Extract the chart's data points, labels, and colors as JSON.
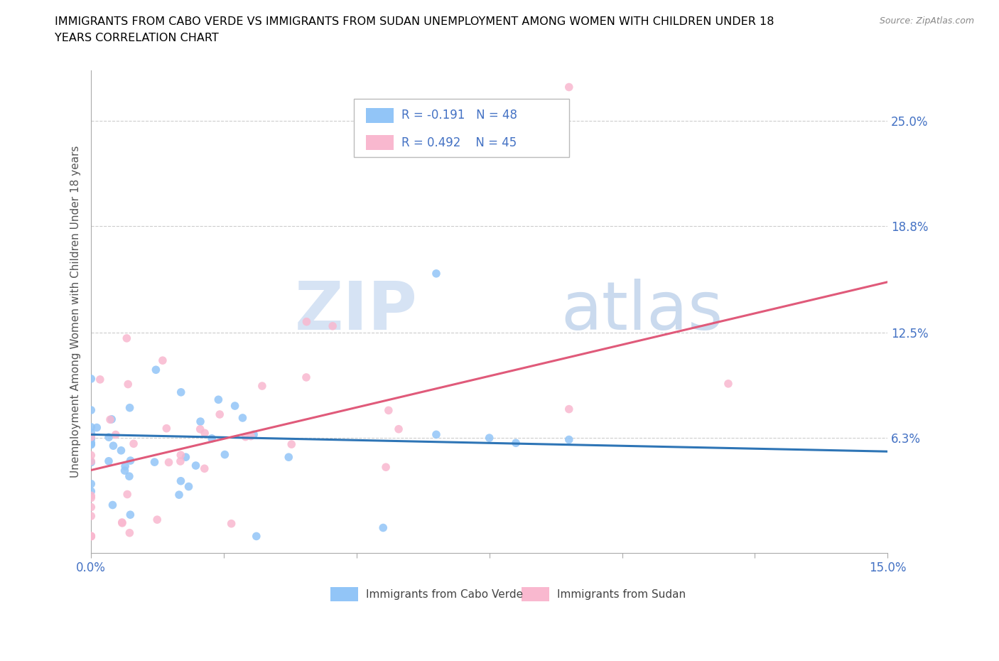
{
  "title_line1": "IMMIGRANTS FROM CABO VERDE VS IMMIGRANTS FROM SUDAN UNEMPLOYMENT AMONG WOMEN WITH CHILDREN UNDER 18",
  "title_line2": "YEARS CORRELATION CHART",
  "source": "Source: ZipAtlas.com",
  "ylabel": "Unemployment Among Women with Children Under 18 years",
  "xmin": 0.0,
  "xmax": 0.15,
  "ymin": -0.005,
  "ymax": 0.28,
  "ytick_vals": [
    0.063,
    0.125,
    0.188,
    0.25
  ],
  "ytick_labels": [
    "6.3%",
    "12.5%",
    "18.8%",
    "25.0%"
  ],
  "xtick_vals": [
    0.0,
    0.025,
    0.05,
    0.075,
    0.1,
    0.125,
    0.15
  ],
  "xtick_labels": [
    "0.0%",
    "",
    "",
    "",
    "",
    "",
    "15.0%"
  ],
  "cabo_verde_label": "Immigrants from Cabo Verde",
  "sudan_label": "Immigrants from Sudan",
  "cabo_verde_R": -0.191,
  "cabo_verde_N": 48,
  "sudan_R": 0.492,
  "sudan_N": 45,
  "cabo_verde_color": "#92c5f7",
  "sudan_color": "#f9b8cf",
  "cabo_verde_line_color": "#2e75b6",
  "sudan_line_color": "#e05a7a",
  "watermark_zip": "ZIP",
  "watermark_atlas": "atlas",
  "tick_color": "#4472c4",
  "axis_color": "#cccccc"
}
